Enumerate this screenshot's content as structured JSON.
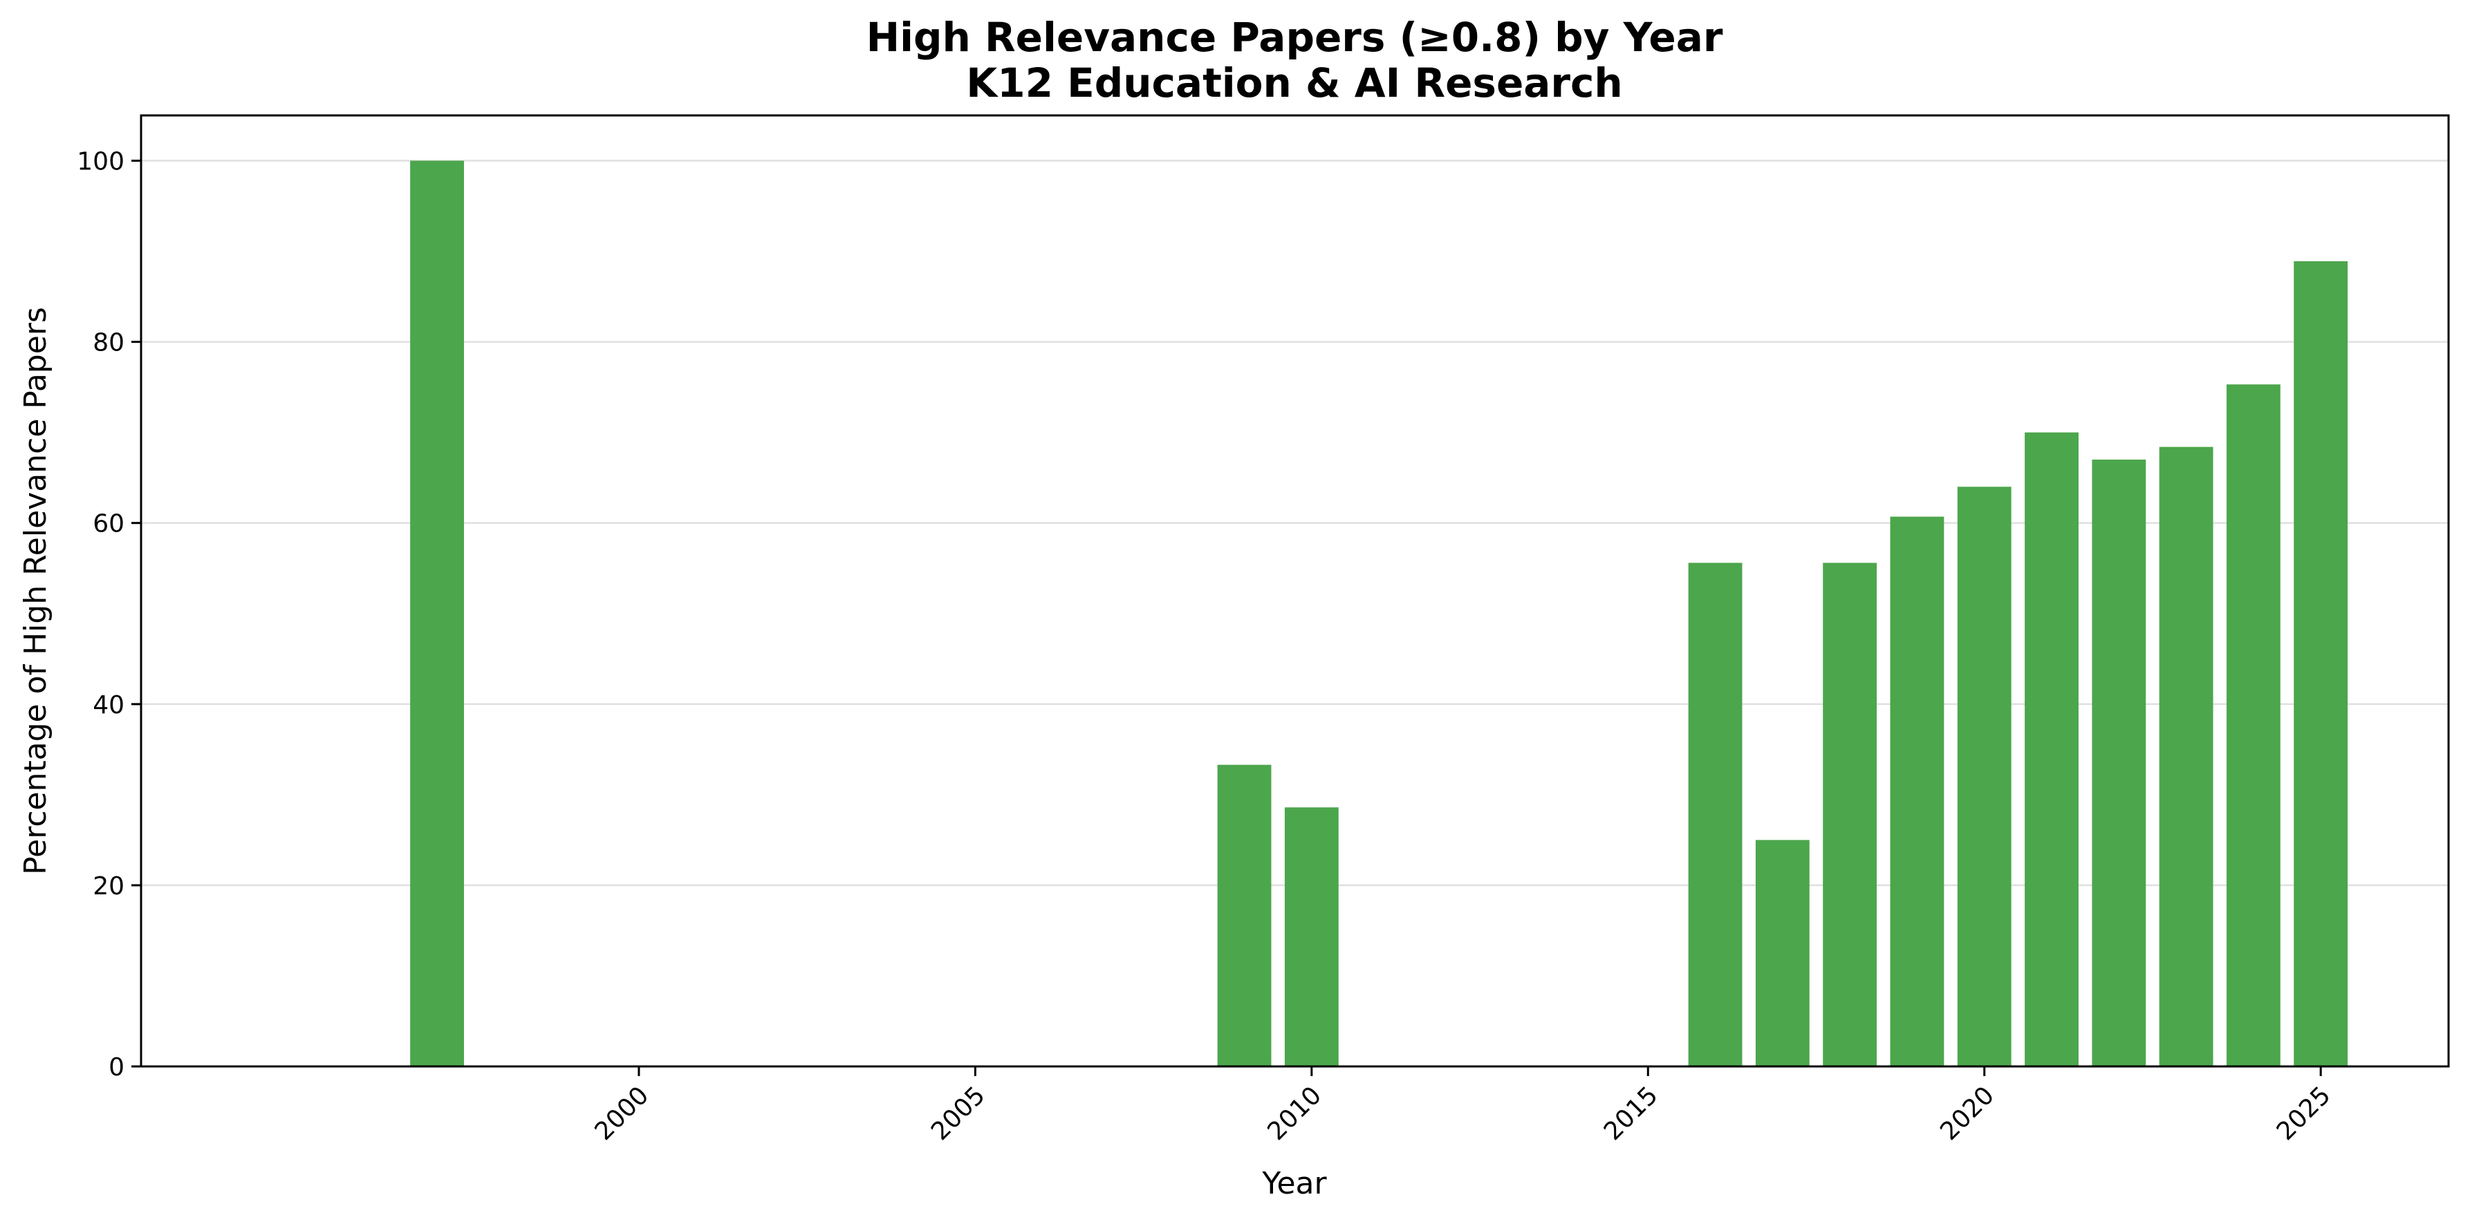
{
  "chart_data": {
    "type": "bar",
    "title": "High Relevance Papers (≥0.8) by Year",
    "subtitle": "K12 Education & AI Research",
    "xlabel": "Year",
    "ylabel": "Percentage of High Relevance Papers",
    "x": [
      1997,
      2009,
      2010,
      2016,
      2017,
      2018,
      2019,
      2020,
      2021,
      2022,
      2023,
      2024,
      2025
    ],
    "values": [
      100,
      33.3,
      28.6,
      55.6,
      25.0,
      55.6,
      60.7,
      64.0,
      70.0,
      67.0,
      68.4,
      75.3,
      88.9
    ],
    "xlim": [
      1992.6,
      2026.9
    ],
    "ylim": [
      0,
      105
    ],
    "xticks": [
      2000,
      2005,
      2010,
      2015,
      2020,
      2025
    ],
    "yticks": [
      0,
      20,
      40,
      60,
      80,
      100
    ],
    "bar_color": "#4ca64c",
    "grid": "horizontal",
    "legend": "none"
  }
}
